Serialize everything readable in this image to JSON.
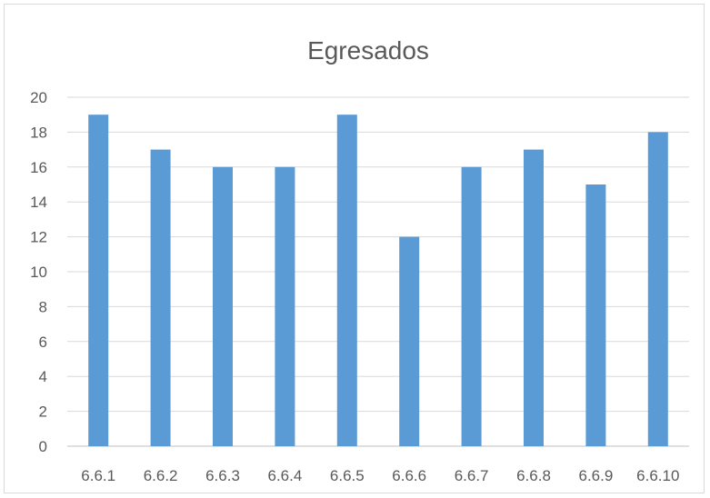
{
  "chart_data": {
    "type": "bar",
    "title": "Egresados",
    "xlabel": "",
    "ylabel": "",
    "categories": [
      "6.6.1",
      "6.6.2",
      "6.6.3",
      "6.6.4",
      "6.6.5",
      "6.6.6",
      "6.6.7",
      "6.6.8",
      "6.6.9",
      "6.6.10"
    ],
    "values": [
      19,
      17,
      16,
      16,
      19,
      12,
      16,
      17,
      15,
      18
    ],
    "ylim": [
      0,
      20
    ],
    "yticks": [
      0,
      2,
      4,
      6,
      8,
      10,
      12,
      14,
      16,
      18,
      20
    ],
    "grid": true,
    "legend": "none",
    "bar_color": "#5b9bd5"
  }
}
